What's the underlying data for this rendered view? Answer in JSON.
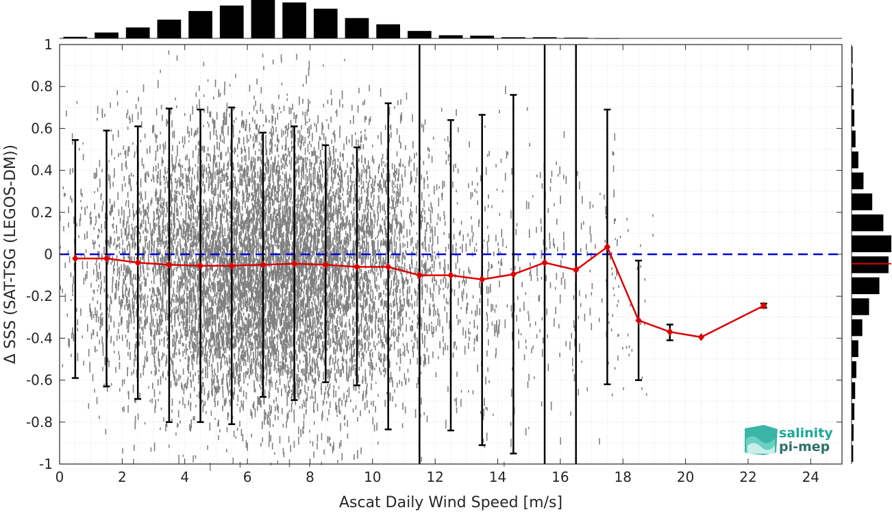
{
  "chart_data": {
    "type": "scatter",
    "xlabel": "Ascat Daily Wind Speed [m/s]",
    "ylabel": "Δ SSS (SAT-TSG (LEGOS-DM))",
    "xlim": [
      0,
      25
    ],
    "ylim": [
      -1,
      1
    ],
    "xticks": [
      0,
      2,
      4,
      6,
      8,
      10,
      12,
      14,
      16,
      18,
      20,
      22,
      24
    ],
    "yticks": [
      -1,
      -0.8,
      -0.6,
      -0.4,
      -0.2,
      0,
      0.2,
      0.4,
      0.6,
      0.8,
      1
    ],
    "ytick_labels": [
      "-1",
      "-0.8",
      "-0.6",
      "-0.4",
      "-0.2",
      "0",
      "0.2",
      "0.4",
      "0.6",
      "0.8",
      "1"
    ],
    "grid": true,
    "zero_line": {
      "y": 0,
      "color": "#0000dd",
      "style": "dashed"
    },
    "vertical_lines_x": [
      11.5,
      15.5,
      16.5
    ],
    "binned_stats": {
      "color": "#dd0000",
      "x": [
        0.5,
        1.5,
        2.5,
        3.5,
        4.5,
        5.5,
        6.5,
        7.5,
        8.5,
        9.5,
        10.5,
        11.5,
        12.5,
        13.5,
        14.5,
        15.5,
        16.5,
        17.5,
        18.5,
        19.5,
        20.5,
        22.5
      ],
      "mean": [
        -0.02,
        -0.02,
        -0.04,
        -0.05,
        -0.055,
        -0.055,
        -0.05,
        -0.045,
        -0.05,
        -0.06,
        -0.06,
        -0.1,
        -0.1,
        -0.12,
        -0.095,
        -0.04,
        -0.075,
        0.035,
        -0.315,
        -0.37,
        -0.395,
        -0.245
      ],
      "err_low": [
        -0.59,
        -0.63,
        -0.69,
        -0.8,
        -0.8,
        -0.81,
        -0.68,
        -0.695,
        -0.61,
        -0.625,
        -0.835,
        null,
        -0.84,
        -0.91,
        -0.95,
        null,
        null,
        -0.62,
        -0.6,
        -0.41,
        null,
        -0.255
      ],
      "err_high": [
        0.545,
        0.59,
        0.61,
        0.695,
        0.69,
        0.7,
        0.58,
        0.61,
        0.52,
        0.51,
        0.72,
        null,
        0.64,
        0.665,
        0.76,
        null,
        null,
        0.69,
        -0.03,
        -0.335,
        null,
        -0.235
      ]
    },
    "scatter_color": "#808080",
    "top_histogram": {
      "bin_centers": [
        0.5,
        1.5,
        2.5,
        3.5,
        4.5,
        5.5,
        6.5,
        7.5,
        8.5,
        9.5,
        10.5,
        11.5,
        12.5,
        13.5,
        14.5,
        15.5,
        16.5,
        17.5
      ],
      "relative_counts": [
        0.04,
        0.15,
        0.28,
        0.48,
        0.7,
        0.84,
        1.0,
        0.92,
        0.76,
        0.52,
        0.36,
        0.19,
        0.08,
        0.07,
        0.03,
        0.03,
        0.02,
        0.005
      ]
    },
    "right_histogram": {
      "bin_centers": [
        0.95,
        0.85,
        0.75,
        0.65,
        0.55,
        0.45,
        0.35,
        0.25,
        0.15,
        0.05,
        -0.05,
        -0.15,
        -0.25,
        -0.35,
        -0.45,
        -0.55,
        -0.65,
        -0.75,
        -0.85,
        -0.95
      ],
      "relative_counts": [
        0.02,
        0.03,
        0.05,
        0.07,
        0.1,
        0.17,
        0.3,
        0.52,
        0.8,
        1.0,
        0.93,
        0.7,
        0.44,
        0.27,
        0.17,
        0.12,
        0.09,
        0.07,
        0.05,
        0.04
      ],
      "mean_line_y": -0.045,
      "mean_line_color": "#dd0000"
    }
  },
  "logo": {
    "line1": "salinity",
    "line2": "pi-mep",
    "color1": "#1aa89a",
    "color2": "#2e6f6a"
  }
}
